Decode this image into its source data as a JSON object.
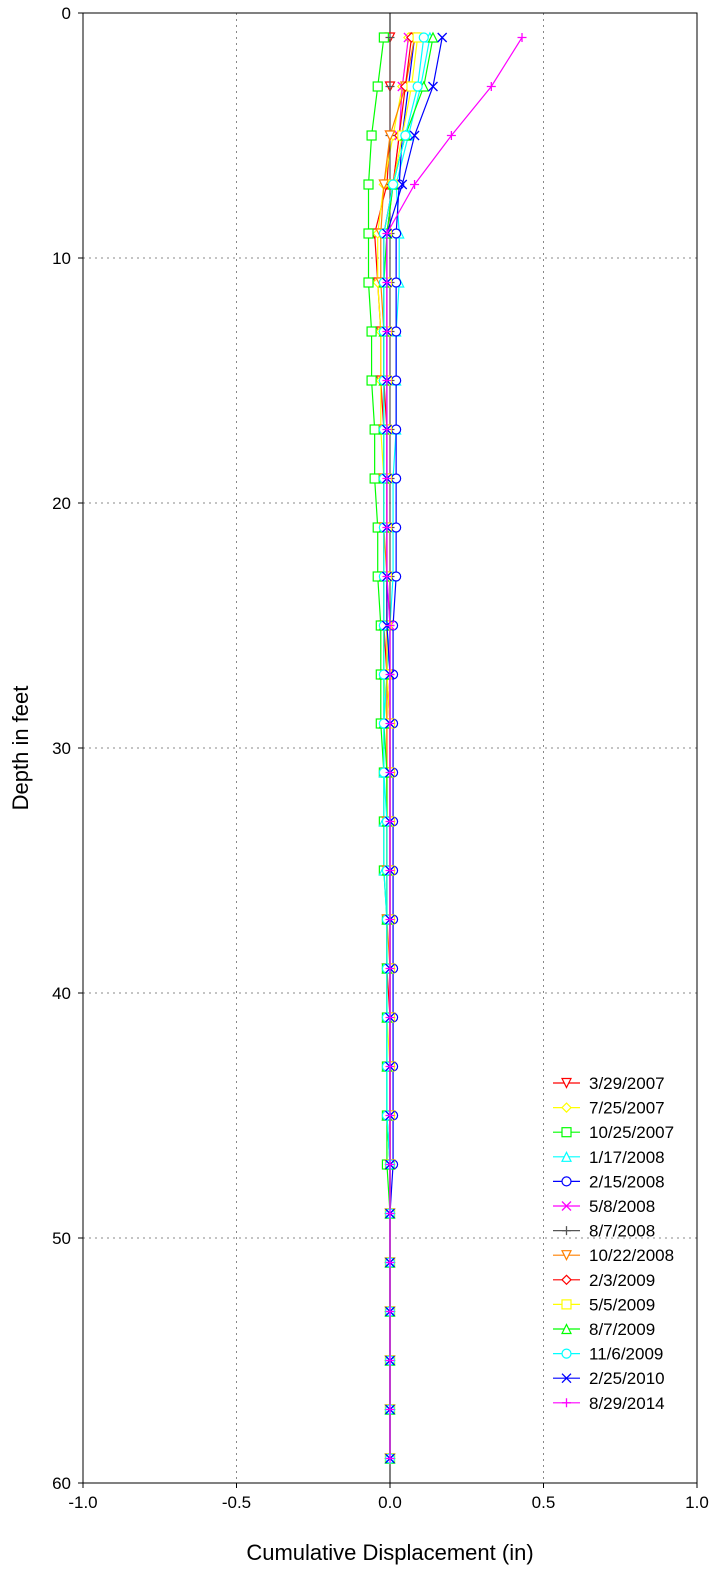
{
  "chart_data": {
    "type": "line",
    "title": "",
    "xlabel": "Cumulative Displacement (in)",
    "ylabel": "Depth in feet",
    "xlim": [
      -1.0,
      1.0
    ],
    "ylim": [
      0,
      60
    ],
    "y_inverted": true,
    "xticks": [
      "-1.0",
      "-0.5",
      "0.0",
      "0.5",
      "1.0"
    ],
    "yticks": [
      "0",
      "10",
      "20",
      "30",
      "40",
      "50",
      "60"
    ],
    "grid": "dotted",
    "legend_position": "bottom-right",
    "depths": [
      1,
      3,
      5,
      7,
      9,
      11,
      13,
      15,
      17,
      19,
      21,
      23,
      25,
      27,
      29,
      31,
      33,
      35,
      37,
      39,
      41,
      43,
      45,
      47,
      49,
      51,
      53,
      55,
      57,
      59
    ],
    "series": [
      {
        "name": "3/29/2007",
        "color": "#ff0000",
        "marker": "triangle-down",
        "values": [
          0.0,
          0.0,
          0.0,
          -0.01,
          -0.05,
          -0.04,
          -0.03,
          -0.03,
          -0.02,
          -0.02,
          -0.02,
          -0.02,
          -0.02,
          -0.01,
          -0.01,
          -0.01,
          -0.01,
          -0.01,
          -0.01,
          -0.01,
          0.0,
          0.0,
          0.0,
          0.0,
          0.0,
          0.0,
          0.0,
          0.0,
          0.0,
          0.0
        ]
      },
      {
        "name": "7/25/2007",
        "color": "#ffff00",
        "marker": "diamond",
        "values": [
          0.06,
          0.04,
          0.01,
          -0.02,
          -0.04,
          -0.04,
          -0.03,
          -0.03,
          -0.03,
          -0.02,
          -0.02,
          -0.02,
          -0.02,
          -0.02,
          -0.01,
          -0.01,
          -0.01,
          -0.01,
          -0.01,
          -0.01,
          -0.01,
          0.0,
          0.0,
          0.0,
          0.0,
          0.0,
          0.0,
          0.0,
          0.0,
          0.0
        ]
      },
      {
        "name": "10/25/2007",
        "color": "#00ff00",
        "marker": "square",
        "values": [
          -0.02,
          -0.04,
          -0.06,
          -0.07,
          -0.07,
          -0.07,
          -0.06,
          -0.06,
          -0.05,
          -0.05,
          -0.04,
          -0.04,
          -0.03,
          -0.03,
          -0.03,
          -0.02,
          -0.02,
          -0.02,
          -0.01,
          -0.01,
          -0.01,
          -0.01,
          -0.01,
          -0.01,
          0.0,
          0.0,
          0.0,
          0.0,
          0.0,
          0.0
        ]
      },
      {
        "name": "1/17/2008",
        "color": "#00ffff",
        "marker": "triangle-up",
        "values": [
          0.13,
          0.1,
          0.06,
          0.02,
          0.03,
          0.03,
          0.02,
          0.02,
          0.02,
          0.01,
          0.01,
          0.01,
          0.0,
          -0.01,
          -0.02,
          -0.02,
          -0.02,
          -0.02,
          -0.01,
          -0.01,
          -0.01,
          -0.01,
          -0.01,
          0.0,
          0.0,
          0.0,
          0.0,
          0.0,
          0.0,
          0.0
        ]
      },
      {
        "name": "2/15/2008",
        "color": "#0000ff",
        "marker": "circle",
        "values": [
          0.08,
          0.06,
          0.04,
          0.03,
          0.02,
          0.02,
          0.02,
          0.02,
          0.02,
          0.02,
          0.02,
          0.02,
          0.01,
          0.01,
          0.01,
          0.01,
          0.01,
          0.01,
          0.01,
          0.01,
          0.01,
          0.01,
          0.01,
          0.01,
          0.0,
          0.0,
          0.0,
          0.0,
          0.0,
          0.0
        ]
      },
      {
        "name": "5/8/2008",
        "color": "#ff00ff",
        "marker": "x",
        "values": [
          0.06,
          0.04,
          0.03,
          0.01,
          -0.01,
          -0.01,
          -0.01,
          -0.01,
          -0.01,
          -0.01,
          -0.01,
          -0.01,
          0.0,
          0.0,
          0.0,
          0.0,
          0.0,
          0.0,
          0.0,
          0.0,
          0.0,
          0.0,
          0.0,
          0.0,
          0.0,
          0.0,
          0.0,
          0.0,
          0.0,
          0.0
        ]
      },
      {
        "name": "8/7/2008",
        "color": "#555555",
        "marker": "plus",
        "values": [
          0.0,
          0.0,
          0.0,
          0.0,
          0.0,
          0.0,
          0.0,
          0.0,
          0.0,
          0.0,
          0.0,
          0.0,
          0.0,
          0.0,
          0.0,
          0.0,
          0.0,
          0.0,
          0.0,
          0.0,
          0.0,
          0.0,
          0.0,
          0.0,
          0.0,
          0.0,
          0.0,
          0.0,
          0.0,
          0.0
        ]
      },
      {
        "name": "10/22/2008",
        "color": "#ff8000",
        "marker": "triangle-down",
        "values": [
          0.08,
          0.05,
          0.0,
          -0.02,
          -0.03,
          -0.03,
          -0.02,
          -0.02,
          -0.02,
          -0.02,
          -0.02,
          -0.01,
          -0.01,
          -0.01,
          -0.01,
          -0.01,
          -0.01,
          -0.01,
          -0.01,
          0.0,
          0.0,
          0.0,
          0.0,
          0.0,
          0.0,
          0.0,
          0.0,
          0.0,
          0.0,
          0.0
        ]
      },
      {
        "name": "2/3/2009",
        "color": "#ff0000",
        "marker": "diamond",
        "values": [
          0.07,
          0.05,
          0.03,
          0.01,
          -0.02,
          -0.02,
          -0.02,
          -0.02,
          -0.01,
          -0.01,
          -0.01,
          -0.01,
          -0.01,
          -0.01,
          0.0,
          0.0,
          0.0,
          0.0,
          0.0,
          0.0,
          0.0,
          0.0,
          0.0,
          0.0,
          0.0,
          0.0,
          0.0,
          0.0,
          0.0,
          0.0
        ]
      },
      {
        "name": "5/5/2009",
        "color": "#ffff00",
        "marker": "square",
        "values": [
          0.09,
          0.07,
          0.04,
          0.01,
          -0.01,
          -0.01,
          -0.01,
          -0.01,
          -0.01,
          -0.01,
          -0.01,
          -0.01,
          -0.01,
          -0.01,
          0.0,
          0.0,
          0.0,
          0.0,
          0.0,
          0.0,
          0.0,
          0.0,
          0.0,
          0.0,
          0.0,
          0.0,
          0.0,
          0.0,
          0.0,
          0.0
        ]
      },
      {
        "name": "8/7/2009",
        "color": "#00ff00",
        "marker": "triangle-up",
        "values": [
          0.14,
          0.11,
          0.05,
          0.01,
          -0.01,
          -0.02,
          -0.02,
          -0.02,
          -0.02,
          -0.02,
          -0.02,
          -0.02,
          -0.02,
          -0.02,
          -0.02,
          -0.01,
          -0.01,
          -0.01,
          -0.01,
          -0.01,
          -0.01,
          -0.01,
          -0.01,
          0.0,
          0.0,
          0.0,
          0.0,
          0.0,
          0.0,
          0.0
        ]
      },
      {
        "name": "11/6/2009",
        "color": "#00ffff",
        "marker": "circle",
        "values": [
          0.11,
          0.09,
          0.05,
          0.01,
          -0.02,
          -0.02,
          -0.02,
          -0.02,
          -0.02,
          -0.02,
          -0.02,
          -0.02,
          -0.02,
          -0.02,
          -0.02,
          -0.02,
          -0.01,
          -0.01,
          -0.01,
          -0.01,
          -0.01,
          -0.01,
          -0.01,
          0.0,
          0.0,
          0.0,
          0.0,
          0.0,
          0.0,
          0.0
        ]
      },
      {
        "name": "2/25/2010",
        "color": "#0000ff",
        "marker": "x",
        "values": [
          0.17,
          0.14,
          0.08,
          0.04,
          -0.01,
          -0.01,
          -0.01,
          -0.01,
          -0.01,
          -0.01,
          -0.01,
          -0.01,
          -0.01,
          0.0,
          0.0,
          0.0,
          0.0,
          0.0,
          0.0,
          0.0,
          0.0,
          0.0,
          0.0,
          0.0,
          0.0,
          0.0,
          0.0,
          0.0,
          0.0,
          0.0
        ]
      },
      {
        "name": "8/29/2014",
        "color": "#ff00ff",
        "marker": "plus",
        "values": [
          0.43,
          0.33,
          0.2,
          0.08,
          -0.01,
          -0.01,
          -0.01,
          -0.01,
          -0.01,
          -0.01,
          -0.01,
          -0.01,
          0.0,
          0.0,
          0.0,
          0.0,
          0.0,
          0.0,
          0.0,
          0.0,
          0.0,
          0.0,
          0.0,
          0.0,
          0.0,
          0.0,
          0.0,
          0.0,
          0.0,
          0.0
        ]
      }
    ]
  }
}
